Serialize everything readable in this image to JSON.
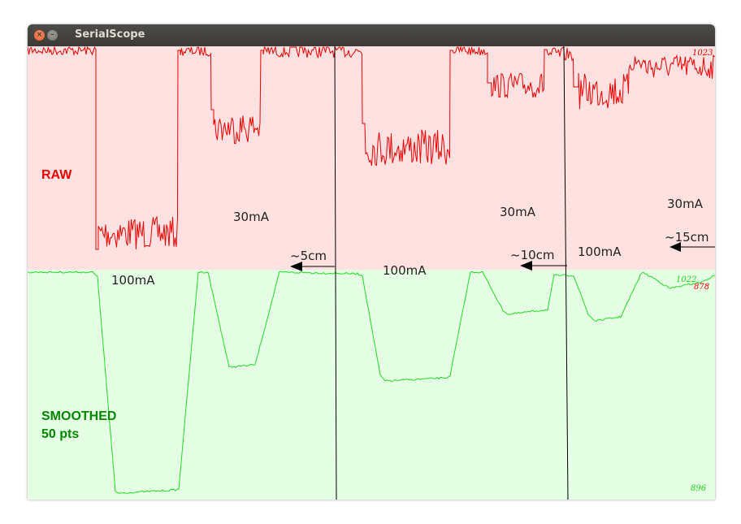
{
  "window": {
    "title": "SerialScope",
    "close_icon": "close-icon",
    "minimize_icon": "minimize-icon"
  },
  "colors": {
    "raw_background": "#ffe1e1",
    "raw_trace": "#ee0000",
    "smoothed_background": "#e4ffe4",
    "smoothed_trace": "#22dd22",
    "raw_label": "#ee0000",
    "smoothed_label": "#008800",
    "marker_lines": "#000000"
  },
  "labels": {
    "raw": "RAW",
    "smoothed_line1": "SMOOTHED",
    "smoothed_line2": "50 pts"
  },
  "scale": {
    "raw_top": "1023",
    "raw_bottom": "878",
    "smoothed_top": "1022",
    "smoothed_bottom": "896"
  },
  "annotations": [
    {
      "id": "ann-100ma-1",
      "text": "100mA"
    },
    {
      "id": "ann-30ma-1",
      "text": "30mA"
    },
    {
      "id": "ann-5cm",
      "text": "~5cm"
    },
    {
      "id": "ann-100ma-2",
      "text": "100mA"
    },
    {
      "id": "ann-30ma-2",
      "text": "30mA"
    },
    {
      "id": "ann-10cm",
      "text": "~10cm"
    },
    {
      "id": "ann-100ma-3",
      "text": "100mA"
    },
    {
      "id": "ann-30ma-3",
      "text": "30mA"
    },
    {
      "id": "ann-15cm",
      "text": "~15cm"
    }
  ]
}
